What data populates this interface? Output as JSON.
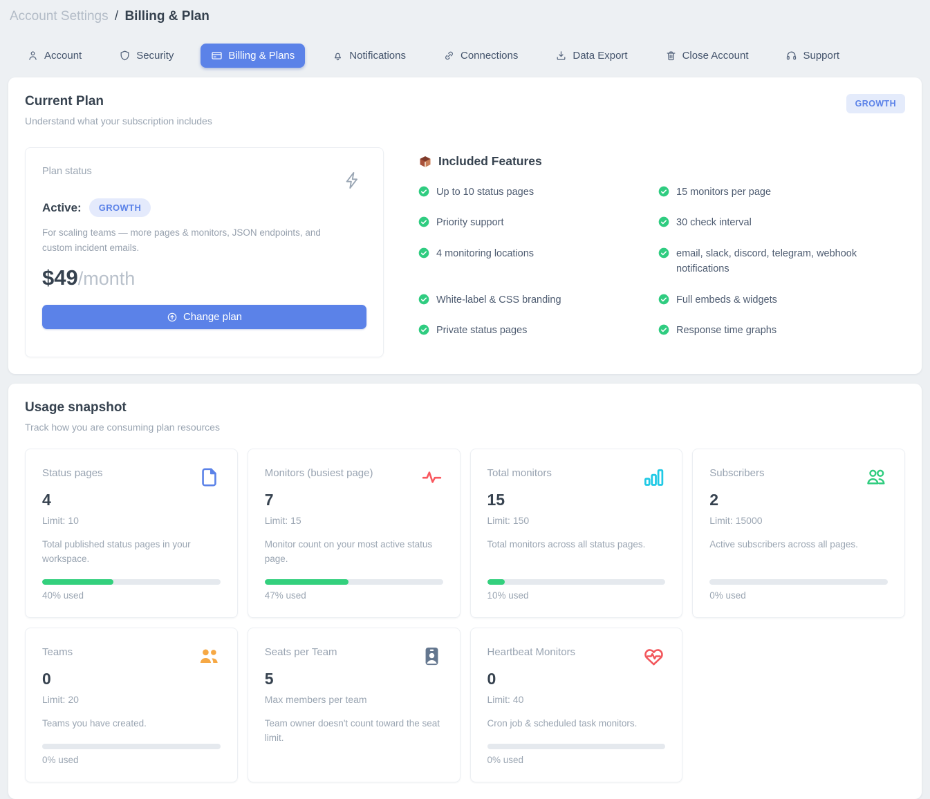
{
  "breadcrumb": {
    "section": "Account Settings",
    "separator": "/",
    "page": "Billing & Plan"
  },
  "tabs": [
    {
      "label": "Account",
      "icon": "person",
      "active": false
    },
    {
      "label": "Security",
      "icon": "shield",
      "active": false
    },
    {
      "label": "Billing & Plans",
      "icon": "credit-card",
      "active": true
    },
    {
      "label": "Notifications",
      "icon": "bell",
      "active": false
    },
    {
      "label": "Connections",
      "icon": "link",
      "active": false
    },
    {
      "label": "Data Export",
      "icon": "download",
      "active": false
    },
    {
      "label": "Close Account",
      "icon": "trash",
      "active": false
    },
    {
      "label": "Support",
      "icon": "headset",
      "active": false
    }
  ],
  "current_plan": {
    "title": "Current Plan",
    "subtitle": "Understand what your subscription includes",
    "plan_badge": "GROWTH",
    "status_label": "Plan status",
    "status_value": "Active:",
    "status_badge": "GROWTH",
    "description": "For scaling teams — more pages & monitors, JSON endpoints, and custom incident emails.",
    "price": "$49",
    "price_period": "/month",
    "change_plan_label": "Change plan",
    "features_title": "Included Features",
    "features": [
      "Up to 10 status pages",
      "15 monitors per page",
      "Priority support",
      "30 check interval",
      "4 monitoring locations",
      "email, slack, discord, telegram, webhook notifications",
      "White-label & CSS branding",
      "Full embeds & widgets",
      "Private status pages",
      "Response time graphs"
    ]
  },
  "usage": {
    "title": "Usage snapshot",
    "subtitle": "Track how you are consuming plan resources",
    "cards": [
      {
        "title": "Status pages",
        "value": "4",
        "limit": "Limit: 10",
        "description": "Total published status pages in your workspace.",
        "percent": 40,
        "percent_label": "40% used",
        "icon": "document",
        "icon_color": "#5b82e8"
      },
      {
        "title": "Monitors (busiest page)",
        "value": "7",
        "limit": "Limit: 15",
        "description": "Monitor count on your most active status page.",
        "percent": 47,
        "percent_label": "47% used",
        "icon": "pulse",
        "icon_color": "#f9575e"
      },
      {
        "title": "Total monitors",
        "value": "15",
        "limit": "Limit: 150",
        "description": "Total monitors across all status pages.",
        "percent": 10,
        "percent_label": "10% used",
        "icon": "bar-chart",
        "icon_color": "#20c9e5"
      },
      {
        "title": "Subscribers",
        "value": "2",
        "limit": "Limit: 15000",
        "description": "Active subscribers across all pages.",
        "percent": 0,
        "percent_label": "0% used",
        "icon": "users",
        "icon_color": "#2ecc7e"
      },
      {
        "title": "Teams",
        "value": "0",
        "limit": "Limit: 20",
        "description": "Teams you have created.",
        "percent": 0,
        "percent_label": "0% used",
        "icon": "users-filled",
        "icon_color": "#f6a844"
      },
      {
        "title": "Seats per Team",
        "value": "5",
        "limit": "Max members per team",
        "description": "Team owner doesn't count toward the seat limit.",
        "icon": "id-badge",
        "icon_color": "#64778f"
      },
      {
        "title": "Heartbeat Monitors",
        "value": "0",
        "limit": "Limit: 40",
        "description": "Cron job & scheduled task monitors.",
        "percent": 0,
        "percent_label": "0% used",
        "icon": "heart-pulse",
        "icon_color": "#f2575c"
      }
    ]
  },
  "colors": {
    "accent_blue": "#5b82e8",
    "success_green": "#33d07d",
    "badge_bg": "#e4eafc",
    "page_bg": "#edf0f3"
  }
}
